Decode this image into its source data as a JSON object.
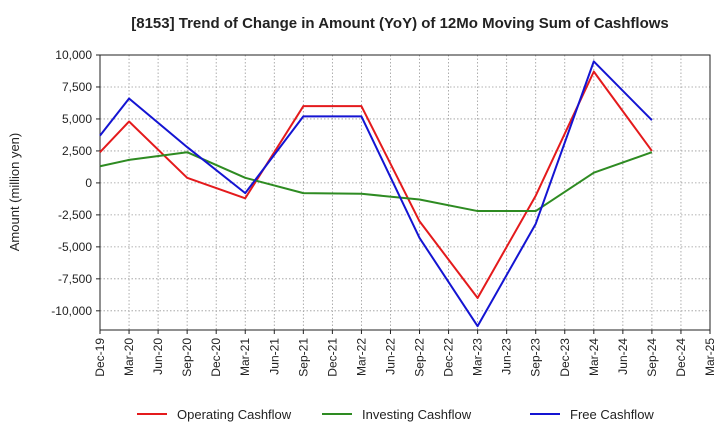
{
  "chart_data": {
    "type": "line",
    "title": "[8153]  Trend of Change in Amount (YoY) of 12Mo Moving Sum of Cashflows",
    "xlabel": "",
    "ylabel": "Amount (million yen)",
    "ylim": [
      -11500,
      10000
    ],
    "y_ticks": [
      10000,
      7500,
      5000,
      2500,
      0,
      -2500,
      -5000,
      -7500,
      -10000
    ],
    "y_tick_labels": [
      "10,000",
      "7,500",
      "5,000",
      "2,500",
      "0",
      "-2,500",
      "-5,000",
      "-7,500",
      "-10,000"
    ],
    "categories": [
      "Dec-19",
      "Mar-20",
      "Jun-20",
      "Sep-20",
      "Dec-20",
      "Mar-21",
      "Jun-21",
      "Sep-21",
      "Dec-21",
      "Mar-22",
      "Jun-22",
      "Sep-22",
      "Dec-22",
      "Mar-23",
      "Jun-23",
      "Sep-23",
      "Dec-23",
      "Mar-24",
      "Jun-24",
      "Sep-24",
      "Dec-24",
      "Mar-25"
    ],
    "grid": true,
    "legend_position": "bottom",
    "series": [
      {
        "name": "Operating Cashflow",
        "color": "#e41a1c",
        "values": [
          2400,
          4800,
          null,
          400,
          null,
          -1200,
          null,
          6000,
          null,
          6000,
          null,
          -3000,
          null,
          -9000,
          null,
          -1000,
          null,
          8700,
          null,
          2500,
          null,
          null
        ]
      },
      {
        "name": "Investing Cashflow",
        "color": "#2e8b22",
        "values": [
          1300,
          1800,
          null,
          2400,
          null,
          400,
          null,
          -800,
          null,
          -850,
          null,
          -1300,
          null,
          -2200,
          null,
          -2200,
          null,
          800,
          null,
          2400,
          null,
          null
        ]
      },
      {
        "name": "Free Cashflow",
        "color": "#1414d2",
        "values": [
          3700,
          6600,
          null,
          2800,
          null,
          -800,
          null,
          5200,
          null,
          5200,
          null,
          -4300,
          null,
          -11200,
          null,
          -3200,
          null,
          9500,
          null,
          4900,
          null,
          null
        ]
      }
    ]
  }
}
